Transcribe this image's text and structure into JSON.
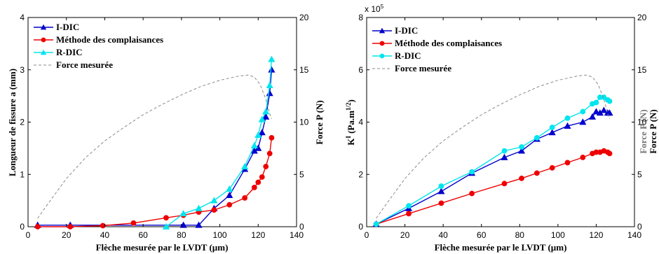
{
  "chart_data": [
    {
      "type": "line",
      "xlabel": "Flèche mesurée par le LVDT (µm)",
      "ylabel": "Longueur de fissure a (mm)",
      "y2label": "Force P (N)",
      "xlim": [
        0,
        140
      ],
      "ylim": [
        0,
        4
      ],
      "y2lim": [
        0,
        20
      ],
      "xticks": [
        "0",
        "20",
        "40",
        "60",
        "80",
        "100",
        "120",
        "140"
      ],
      "yticks": [
        "0",
        "1",
        "2",
        "3",
        "4"
      ],
      "y2ticks": [
        "0",
        "5",
        "10",
        "15",
        "20"
      ],
      "legend_position": "top-left",
      "series": [
        {
          "name": "I-DIC",
          "color": "#0000cc",
          "marker": "triangle",
          "x": [
            5,
            22,
            81,
            89,
            97,
            105,
            113,
            118,
            120,
            122,
            124,
            126,
            127
          ],
          "y": [
            0.03,
            0.03,
            0.03,
            0.03,
            0.35,
            0.6,
            1.1,
            1.45,
            1.5,
            1.8,
            2.1,
            2.55,
            3.0
          ]
        },
        {
          "name": "Méthode des complaisances",
          "color": "#ee0000",
          "marker": "circle",
          "x": [
            5,
            22,
            39,
            55,
            72,
            81,
            89,
            97,
            105,
            113,
            118,
            120,
            122,
            124,
            126,
            127
          ],
          "y": [
            0.0,
            0.0,
            0.02,
            0.07,
            0.17,
            0.22,
            0.28,
            0.32,
            0.42,
            0.55,
            0.75,
            0.85,
            0.95,
            1.15,
            1.4,
            1.7
          ]
        },
        {
          "name": "R-DIC",
          "color": "#00e5ee",
          "marker": "triangle",
          "x": [
            72,
            81,
            89,
            97,
            105,
            113,
            118,
            120,
            122,
            124,
            126,
            127
          ],
          "y": [
            0.0,
            0.25,
            0.35,
            0.5,
            0.72,
            1.15,
            1.55,
            1.75,
            2.05,
            2.2,
            2.7,
            3.2
          ]
        },
        {
          "name": "Force mesurée",
          "color": "#8a8a8a",
          "marker": "none",
          "dashed": true,
          "axis": "right",
          "x": [
            5,
            10,
            20,
            30,
            40,
            50,
            60,
            70,
            80,
            90,
            100,
            110,
            115,
            118,
            121,
            124,
            126,
            127
          ],
          "y": [
            0.8,
            2.1,
            4.6,
            6.6,
            8.2,
            9.5,
            10.7,
            11.7,
            12.6,
            13.4,
            14.0,
            14.4,
            14.5,
            14.3,
            13.6,
            12.2,
            10.8,
            10.3
          ]
        }
      ]
    },
    {
      "type": "line",
      "xlabel": "Flèche mesurée par le LVDT (µm)",
      "ylabel": "K",
      "ylabel_sup": "I",
      "ylabel_rest": " (Pa.m",
      "ylabel_exp": "1/2",
      "ylabel_close": ")",
      "y2label": "Force P (N)",
      "y2label_ghost": "Force P (N)",
      "multiplier_prefix": "x 10",
      "multiplier_exp": "5",
      "xlim": [
        0,
        140
      ],
      "ylim": [
        0,
        8
      ],
      "y2lim": [
        0,
        20
      ],
      "xticks": [
        "0",
        "20",
        "40",
        "60",
        "80",
        "100",
        "120",
        "140"
      ],
      "yticks": [
        "0",
        "2",
        "4",
        "6",
        "8"
      ],
      "y2ticks": [
        "0",
        "5",
        "10",
        "15",
        "20"
      ],
      "legend_position": "top-left",
      "series": [
        {
          "name": "I-DIC",
          "color": "#0000cc",
          "marker": "triangle",
          "x": [
            5,
            22,
            39,
            55,
            72,
            81,
            89,
            97,
            105,
            113,
            118,
            120,
            122,
            124,
            126,
            127
          ],
          "y": [
            0.1,
            0.7,
            1.35,
            2.05,
            2.65,
            2.9,
            3.35,
            3.6,
            3.85,
            4.0,
            4.2,
            4.4,
            4.35,
            4.45,
            4.35,
            4.35
          ]
        },
        {
          "name": "Méthode des complaisances",
          "color": "#ee0000",
          "marker": "circle",
          "x": [
            5,
            22,
            39,
            55,
            72,
            81,
            89,
            97,
            105,
            113,
            118,
            120,
            122,
            124,
            126,
            127
          ],
          "y": [
            0.1,
            0.5,
            0.9,
            1.27,
            1.65,
            1.85,
            2.05,
            2.25,
            2.45,
            2.65,
            2.8,
            2.85,
            2.85,
            2.9,
            2.85,
            2.8
          ]
        },
        {
          "name": "R-DIC",
          "color": "#00e5ee",
          "marker": "circle",
          "x": [
            5,
            22,
            39,
            55,
            72,
            81,
            89,
            97,
            105,
            113,
            118,
            120,
            122,
            124,
            126,
            127
          ],
          "y": [
            0.1,
            0.8,
            1.55,
            2.1,
            2.9,
            3.05,
            3.4,
            3.8,
            4.15,
            4.4,
            4.7,
            4.75,
            4.95,
            4.95,
            4.85,
            4.8
          ]
        },
        {
          "name": "Force mesurée",
          "color": "#8a8a8a",
          "marker": "none",
          "dashed": true,
          "axis": "right",
          "x": [
            5,
            10,
            20,
            30,
            40,
            50,
            60,
            70,
            80,
            90,
            100,
            110,
            115,
            118,
            121,
            124,
            126,
            127
          ],
          "y": [
            0.8,
            2.1,
            4.6,
            6.6,
            8.2,
            9.5,
            10.7,
            11.7,
            12.6,
            13.4,
            14.0,
            14.4,
            14.5,
            14.3,
            13.6,
            12.2,
            10.8,
            10.3
          ]
        }
      ]
    }
  ]
}
